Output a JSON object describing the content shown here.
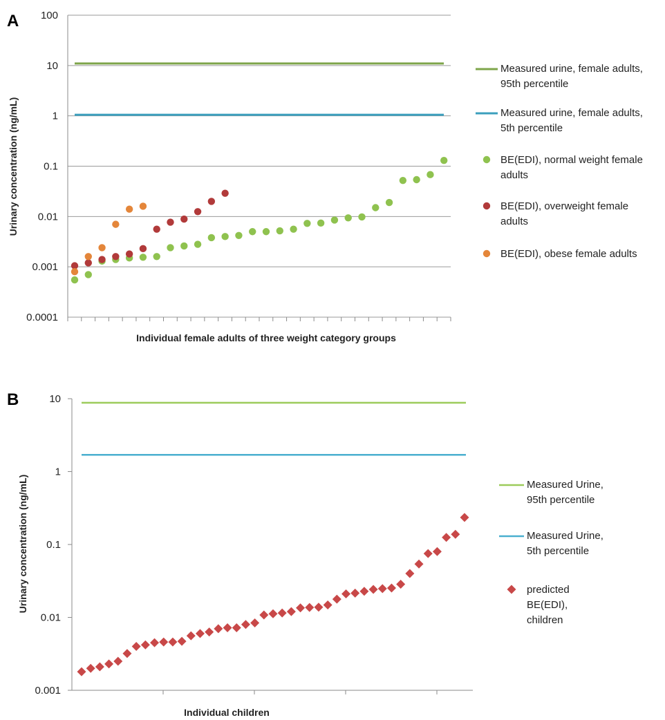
{
  "chart_data": [
    {
      "panel": "A",
      "type": "scatter",
      "y_scale": "log",
      "ylim": [
        0.0001,
        100
      ],
      "ylabel": "Urinary concentration (ng/mL)",
      "xlabel": "Individual female adults of three weight category groups",
      "yticks": [
        "100",
        "10",
        "1",
        "0.1",
        "0.01",
        "0.001",
        "0.0001"
      ],
      "grid": true,
      "legend_position": "right",
      "reference_lines": [
        {
          "name": "Measured urine, female adults, 95th percentile",
          "value": 11,
          "color": "#7ea54a"
        },
        {
          "name": "Measured urine, female adults, 5th percentile",
          "value": 1.05,
          "color": "#3b9fbd"
        }
      ],
      "series": [
        {
          "name": "BE(EDI), normal weight female adults",
          "color": "#8fc24f",
          "values": [
            0.00055,
            0.0007,
            0.0013,
            0.0014,
            0.0015,
            0.00155,
            0.0016,
            0.0024,
            0.0026,
            0.0028,
            0.0038,
            0.004,
            0.0042,
            0.005,
            0.005,
            0.0052,
            0.0056,
            0.0073,
            0.0074,
            0.0085,
            0.0094,
            0.0098,
            0.015,
            0.019,
            0.052,
            0.054,
            0.068,
            0.13
          ]
        },
        {
          "name": "BE(EDI), overweight female adults",
          "color": "#b13a3a",
          "values": [
            0.00105,
            0.0012,
            0.0014,
            0.0016,
            0.0018,
            0.0023,
            0.0056,
            0.0077,
            0.0089,
            0.0125,
            0.02,
            0.029
          ]
        },
        {
          "name": "BE(EDI), obese female adults",
          "color": "#e4863a",
          "values": [
            0.0008,
            0.0016,
            0.0024,
            0.007,
            0.014,
            0.016
          ]
        }
      ]
    },
    {
      "panel": "B",
      "type": "scatter",
      "y_scale": "log",
      "ylim": [
        0.001,
        10
      ],
      "ylabel": "Urinary concentration (ng/mL)",
      "xlabel": "Individual children",
      "yticks": [
        "10",
        "1",
        "0.1",
        "0.01",
        "0.001"
      ],
      "grid": false,
      "legend_position": "right",
      "reference_lines": [
        {
          "name": "Measured Urine, 95th percentile",
          "value": 8.8,
          "color": "#9ccb5a"
        },
        {
          "name": "Measured Urine, 5th percentile",
          "value": 1.7,
          "color": "#4aafcf"
        }
      ],
      "series": [
        {
          "name": "predicted BE(EDI), children",
          "color": "#c84848",
          "values": [
            0.0018,
            0.002,
            0.0021,
            0.0023,
            0.0025,
            0.0032,
            0.004,
            0.0042,
            0.0045,
            0.0046,
            0.0046,
            0.0047,
            0.0056,
            0.006,
            0.0063,
            0.007,
            0.0072,
            0.0072,
            0.008,
            0.0084,
            0.0108,
            0.0112,
            0.0115,
            0.012,
            0.0135,
            0.0137,
            0.0138,
            0.0148,
            0.0178,
            0.021,
            0.0215,
            0.0228,
            0.0242,
            0.0248,
            0.0253,
            0.0285,
            0.04,
            0.054,
            0.075,
            0.08,
            0.125,
            0.138,
            0.235
          ]
        }
      ]
    }
  ]
}
